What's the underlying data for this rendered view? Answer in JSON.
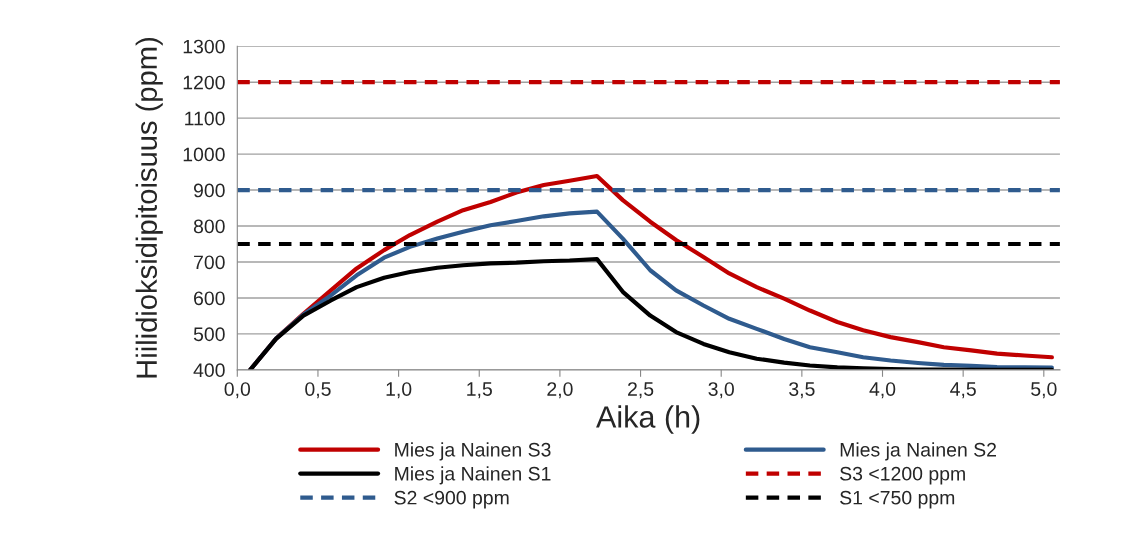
{
  "chart_data": {
    "type": "line",
    "xlabel": "Aika (h)",
    "ylabel": "Hiilidioksidipitoisuus (ppm)",
    "x": [
      0.08,
      0.24,
      0.41,
      0.58,
      0.74,
      0.91,
      1.07,
      1.24,
      1.4,
      1.57,
      1.73,
      1.9,
      2.06,
      2.23,
      2.39,
      2.56,
      2.72,
      2.89,
      3.05,
      3.22,
      3.39,
      3.55,
      3.72,
      3.88,
      4.05,
      4.22,
      4.38,
      4.55,
      4.71,
      4.88,
      5.05
    ],
    "series": [
      {
        "name": "Mies ja Nainen S3",
        "color": "#c00000",
        "values": [
          400,
          487,
          556,
          621,
          682,
          733,
          775,
          812,
          844,
          867,
          893,
          914,
          926,
          939,
          872,
          812,
          761,
          714,
          668,
          630,
          598,
          565,
          533,
          510,
          491,
          477,
          463,
          454,
          445,
          440,
          435
        ]
      },
      {
        "name": "Mies ja Nainen S2",
        "color": "#2f5b8e",
        "values": [
          400,
          487,
          554,
          607,
          663,
          712,
          742,
          765,
          784,
          802,
          814,
          827,
          835,
          840,
          765,
          677,
          621,
          579,
          542,
          514,
          486,
          463,
          449,
          435,
          426,
          419,
          414,
          411,
          408,
          407,
          406
        ]
      },
      {
        "name": "Mies ja Nainen S1",
        "color": "#000000",
        "values": [
          400,
          486,
          551,
          593,
          630,
          656,
          672,
          684,
          691,
          696,
          698,
          702,
          704,
          708,
          617,
          551,
          505,
          472,
          449,
          431,
          420,
          412,
          407,
          404,
          402,
          401,
          401,
          400,
          400,
          400,
          400
        ]
      }
    ],
    "ref_lines": [
      {
        "axis": "y",
        "value": 1200,
        "label": "S3 <1200 ppm",
        "color": "#c00000",
        "line_style": "dashed"
      },
      {
        "axis": "y",
        "value": 900,
        "label": "S2 <900 ppm",
        "color": "#2f5b8e",
        "line_style": "dashed"
      },
      {
        "axis": "y",
        "value": 750,
        "label": "S1 <750 ppm",
        "color": "#000000",
        "line_style": "dashed"
      }
    ],
    "xlim": [
      0,
      5.1
    ],
    "xticks": [
      {
        "value": 0,
        "label": "0,0"
      },
      {
        "value": 0.5,
        "label": "0,5"
      },
      {
        "value": 1,
        "label": "1,0"
      },
      {
        "value": 1.5,
        "label": "1,5"
      },
      {
        "value": 2,
        "label": "2,0"
      },
      {
        "value": 2.5,
        "label": "2,5"
      },
      {
        "value": 3,
        "label": "3,0"
      },
      {
        "value": 3.5,
        "label": "3,5"
      },
      {
        "value": 4,
        "label": "4,0"
      },
      {
        "value": 4.5,
        "label": "4,5"
      },
      {
        "value": 5,
        "label": "5,0"
      }
    ],
    "ylim": [
      400,
      1300
    ],
    "yticks": [
      400,
      500,
      600,
      700,
      800,
      900,
      1000,
      1100,
      1200,
      1300
    ],
    "grid": "y",
    "legend": "bottom",
    "marker": "none",
    "line_style": "solid"
  }
}
